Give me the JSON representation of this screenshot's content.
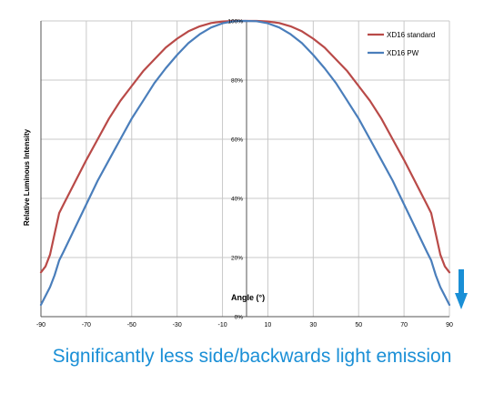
{
  "chart_data": {
    "type": "line",
    "title": "",
    "xlabel": "Angle (°)",
    "ylabel": "Relative Luminous Intensity",
    "xlim": [
      -90,
      90
    ],
    "ylim": [
      0,
      100
    ],
    "x_ticks": [
      "-90",
      "-70",
      "-50",
      "-30",
      "-10",
      "10",
      "30",
      "50",
      "70",
      "90"
    ],
    "y_ticks": [
      "0%",
      "20%",
      "40%",
      "60%",
      "80%",
      "100%"
    ],
    "grid": true,
    "legend_position": "top-right",
    "series": [
      {
        "name": "XD16 standard",
        "color": "#b94a48",
        "x": [
          -90,
          -88,
          -86,
          -84,
          -82,
          -80,
          -78,
          -76,
          -74,
          -72,
          -70,
          -65,
          -60,
          -55,
          -50,
          -45,
          -40,
          -35,
          -30,
          -25,
          -20,
          -15,
          -10,
          -5,
          0,
          5,
          10,
          15,
          20,
          25,
          30,
          35,
          40,
          45,
          50,
          55,
          60,
          65,
          70,
          72,
          74,
          76,
          78,
          80,
          82,
          84,
          86,
          88,
          90
        ],
        "y": [
          15,
          17,
          21,
          28,
          35,
          38,
          41,
          44,
          47,
          50,
          53,
          60,
          67,
          73,
          78,
          83,
          87,
          91,
          94,
          96.5,
          98.2,
          99.3,
          99.8,
          100,
          100,
          100,
          99.8,
          99.3,
          98.2,
          96.5,
          94,
          91,
          87,
          83,
          78,
          73,
          67,
          60,
          53,
          50,
          47,
          44,
          41,
          38,
          35,
          28,
          21,
          17,
          15
        ]
      },
      {
        "name": "XD16 PW",
        "color": "#4a7ebb",
        "x": [
          -90,
          -88,
          -86,
          -84,
          -82,
          -80,
          -75,
          -70,
          -65,
          -60,
          -55,
          -50,
          -45,
          -40,
          -35,
          -30,
          -25,
          -20,
          -15,
          -10,
          -5,
          0,
          5,
          10,
          15,
          20,
          25,
          30,
          35,
          40,
          45,
          50,
          55,
          60,
          65,
          70,
          75,
          80,
          82,
          84,
          86,
          88,
          90
        ],
        "y": [
          4,
          7,
          10,
          14,
          19,
          22,
          30,
          38,
          46,
          53,
          60,
          67,
          73,
          79,
          84,
          88.5,
          92.5,
          95.5,
          97.8,
          99.2,
          99.9,
          100,
          99.9,
          99.2,
          97.8,
          95.5,
          92.5,
          88.5,
          84,
          79,
          73,
          67,
          60,
          53,
          46,
          38,
          30,
          22,
          19,
          14,
          10,
          7,
          4
        ]
      }
    ]
  },
  "annotation": {
    "arrow_color": "#1a8fd6"
  },
  "caption": {
    "text": "Significantly less side/backwards light emission",
    "color": "#1a8fd6"
  }
}
